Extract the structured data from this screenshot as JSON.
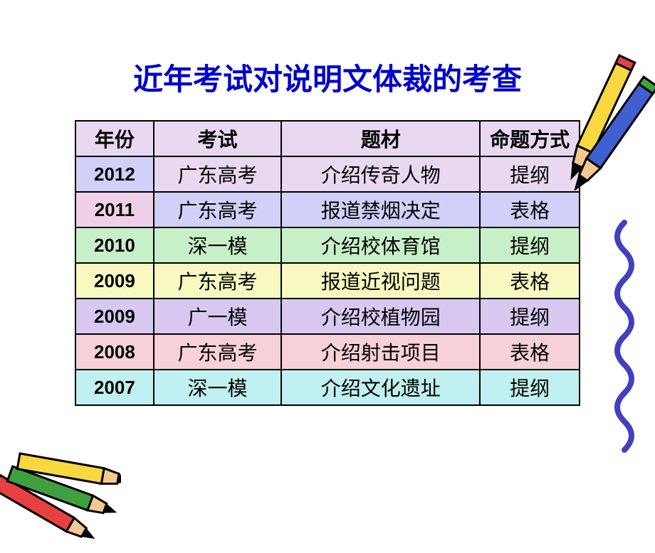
{
  "title": "近年考试对说明文体裁的考查",
  "table": {
    "header_bg": "#e8d8f0",
    "columns": [
      "年份",
      "考试",
      "题材",
      "命题方式"
    ],
    "rows": [
      {
        "year": "2012",
        "exam": "广东高考",
        "topic": "介绍传奇人物",
        "method": "提纲",
        "year_bg": "#d0d0f8",
        "row_bg": "#e8d8f0"
      },
      {
        "year": "2011",
        "exam": "广东高考",
        "topic": "报道禁烟决定",
        "method": "表格",
        "year_bg": "#f0d0e8",
        "row_bg": "#d0d0f8"
      },
      {
        "year": "2010",
        "exam": "深一模",
        "topic": "介绍校体育馆",
        "method": "提纲",
        "year_bg": "#c8f0c8",
        "row_bg": "#c8f0c8"
      },
      {
        "year": "2009",
        "exam": "广东高考",
        "topic": "报道近视问题",
        "method": "表格",
        "year_bg": "#f8f8c0",
        "row_bg": "#f8f8c0"
      },
      {
        "year": "2009",
        "exam": "广一模",
        "topic": "介绍校植物园",
        "method": "提纲",
        "year_bg": "#d8c8f0",
        "row_bg": "#d8c8f0"
      },
      {
        "year": "2008",
        "exam": "广东高考",
        "topic": "介绍射击项目",
        "method": "表格",
        "year_bg": "#f8d0d8",
        "row_bg": "#f8d0d8"
      },
      {
        "year": "2007",
        "exam": "深一模",
        "topic": "介绍文化遗址",
        "method": "提纲",
        "year_bg": "#c0f0f0",
        "row_bg": "#c0f0f0"
      }
    ]
  },
  "decorations": {
    "pencil_colors": [
      "#e84040",
      "#f8d840",
      "#4040c0",
      "#40a040"
    ],
    "squiggle_color": "#4040c0"
  }
}
